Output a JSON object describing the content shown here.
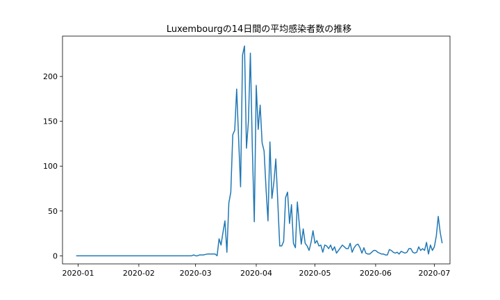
{
  "chart_data": {
    "type": "line",
    "title": "Luxembourgの14日間の平均感染者数の推移",
    "xlabel": "",
    "ylabel": "",
    "grid": false,
    "ylim": [
      -9,
      245
    ],
    "xlim": [
      "2019-12-24",
      "2020-07-09"
    ],
    "x_ticks": [
      "2020-01-01",
      "2020-02-01",
      "2020-03-01",
      "2020-04-01",
      "2020-05-01",
      "2020-06-01",
      "2020-07-01"
    ],
    "x_tick_labels": [
      "2020-01",
      "2020-02",
      "2020-03",
      "2020-04",
      "2020-05",
      "2020-06",
      "2020-07"
    ],
    "y_ticks": [
      0,
      50,
      100,
      150,
      200
    ],
    "y_tick_labels": [
      "0",
      "50",
      "100",
      "150",
      "200"
    ],
    "line_color": "#1f77b4",
    "series": [
      {
        "points": [
          [
            "2019-12-31",
            0
          ],
          [
            "2020-01-15",
            0
          ],
          [
            "2020-02-01",
            0
          ],
          [
            "2020-02-15",
            0
          ],
          [
            "2020-02-28",
            0
          ],
          [
            "2020-02-29",
            1
          ],
          [
            "2020-03-01",
            0
          ],
          [
            "2020-03-02",
            0
          ],
          [
            "2020-03-03",
            1
          ],
          [
            "2020-03-04",
            1
          ],
          [
            "2020-03-05",
            1
          ],
          [
            "2020-03-06",
            1.5
          ],
          [
            "2020-03-07",
            2
          ],
          [
            "2020-03-08",
            2
          ],
          [
            "2020-03-09",
            2
          ],
          [
            "2020-03-10",
            2
          ],
          [
            "2020-03-11",
            2
          ],
          [
            "2020-03-12",
            0
          ],
          [
            "2020-03-13",
            19
          ],
          [
            "2020-03-14",
            12
          ],
          [
            "2020-03-15",
            26
          ],
          [
            "2020-03-16",
            39
          ],
          [
            "2020-03-17",
            4
          ],
          [
            "2020-03-18",
            59
          ],
          [
            "2020-03-19",
            71
          ],
          [
            "2020-03-20",
            135
          ],
          [
            "2020-03-21",
            140
          ],
          [
            "2020-03-22",
            186
          ],
          [
            "2020-03-23",
            130
          ],
          [
            "2020-03-24",
            77
          ],
          [
            "2020-03-25",
            224
          ],
          [
            "2020-03-26",
            234
          ],
          [
            "2020-03-27",
            120
          ],
          [
            "2020-03-28",
            150
          ],
          [
            "2020-03-29",
            226
          ],
          [
            "2020-03-30",
            120
          ],
          [
            "2020-03-31",
            38
          ],
          [
            "2020-04-01",
            190
          ],
          [
            "2020-04-02",
            141
          ],
          [
            "2020-04-03",
            168
          ],
          [
            "2020-04-04",
            126
          ],
          [
            "2020-04-05",
            117
          ],
          [
            "2020-04-06",
            75
          ],
          [
            "2020-04-07",
            39
          ],
          [
            "2020-04-08",
            127
          ],
          [
            "2020-04-09",
            64
          ],
          [
            "2020-04-10",
            82
          ],
          [
            "2020-04-11",
            108
          ],
          [
            "2020-04-12",
            60
          ],
          [
            "2020-04-13",
            11
          ],
          [
            "2020-04-14",
            11
          ],
          [
            "2020-04-15",
            16
          ],
          [
            "2020-04-16",
            65
          ],
          [
            "2020-04-17",
            71
          ],
          [
            "2020-04-18",
            36
          ],
          [
            "2020-04-19",
            57
          ],
          [
            "2020-04-20",
            14
          ],
          [
            "2020-04-21",
            9
          ],
          [
            "2020-04-22",
            60
          ],
          [
            "2020-04-23",
            35
          ],
          [
            "2020-04-24",
            13
          ],
          [
            "2020-04-25",
            30
          ],
          [
            "2020-04-26",
            14
          ],
          [
            "2020-04-27",
            11
          ],
          [
            "2020-04-28",
            6
          ],
          [
            "2020-04-29",
            15
          ],
          [
            "2020-04-30",
            28
          ],
          [
            "2020-05-01",
            14
          ],
          [
            "2020-05-02",
            17
          ],
          [
            "2020-05-03",
            11
          ],
          [
            "2020-05-04",
            12
          ],
          [
            "2020-05-05",
            4
          ],
          [
            "2020-05-06",
            12
          ],
          [
            "2020-05-07",
            11
          ],
          [
            "2020-05-08",
            8
          ],
          [
            "2020-05-09",
            12
          ],
          [
            "2020-05-10",
            6
          ],
          [
            "2020-05-11",
            10
          ],
          [
            "2020-05-12",
            3
          ],
          [
            "2020-05-13",
            6
          ],
          [
            "2020-05-14",
            9
          ],
          [
            "2020-05-15",
            12
          ],
          [
            "2020-05-16",
            10
          ],
          [
            "2020-05-17",
            8
          ],
          [
            "2020-05-18",
            8
          ],
          [
            "2020-05-19",
            14
          ],
          [
            "2020-05-20",
            4
          ],
          [
            "2020-05-21",
            9
          ],
          [
            "2020-05-22",
            12
          ],
          [
            "2020-05-23",
            13
          ],
          [
            "2020-05-24",
            9
          ],
          [
            "2020-05-25",
            3
          ],
          [
            "2020-05-26",
            9
          ],
          [
            "2020-05-27",
            3
          ],
          [
            "2020-05-28",
            2
          ],
          [
            "2020-05-29",
            2
          ],
          [
            "2020-05-30",
            4
          ],
          [
            "2020-05-31",
            6
          ],
          [
            "2020-06-01",
            6
          ],
          [
            "2020-06-02",
            4
          ],
          [
            "2020-06-03",
            3
          ],
          [
            "2020-06-04",
            2
          ],
          [
            "2020-06-05",
            2
          ],
          [
            "2020-06-06",
            1
          ],
          [
            "2020-06-07",
            1
          ],
          [
            "2020-06-08",
            7
          ],
          [
            "2020-06-09",
            6
          ],
          [
            "2020-06-10",
            4
          ],
          [
            "2020-06-11",
            3
          ],
          [
            "2020-06-12",
            4
          ],
          [
            "2020-06-13",
            2
          ],
          [
            "2020-06-14",
            5
          ],
          [
            "2020-06-15",
            4
          ],
          [
            "2020-06-16",
            3
          ],
          [
            "2020-06-17",
            4
          ],
          [
            "2020-06-18",
            8
          ],
          [
            "2020-06-19",
            8
          ],
          [
            "2020-06-20",
            4
          ],
          [
            "2020-06-21",
            3
          ],
          [
            "2020-06-22",
            4
          ],
          [
            "2020-06-23",
            10
          ],
          [
            "2020-06-24",
            6
          ],
          [
            "2020-06-25",
            8
          ],
          [
            "2020-06-26",
            6
          ],
          [
            "2020-06-27",
            15
          ],
          [
            "2020-06-28",
            2
          ],
          [
            "2020-06-29",
            12
          ],
          [
            "2020-06-30",
            6
          ],
          [
            "2020-07-01",
            10
          ],
          [
            "2020-07-02",
            22
          ],
          [
            "2020-07-03",
            44
          ],
          [
            "2020-07-04",
            26
          ],
          [
            "2020-07-05",
            14
          ]
        ]
      }
    ]
  }
}
